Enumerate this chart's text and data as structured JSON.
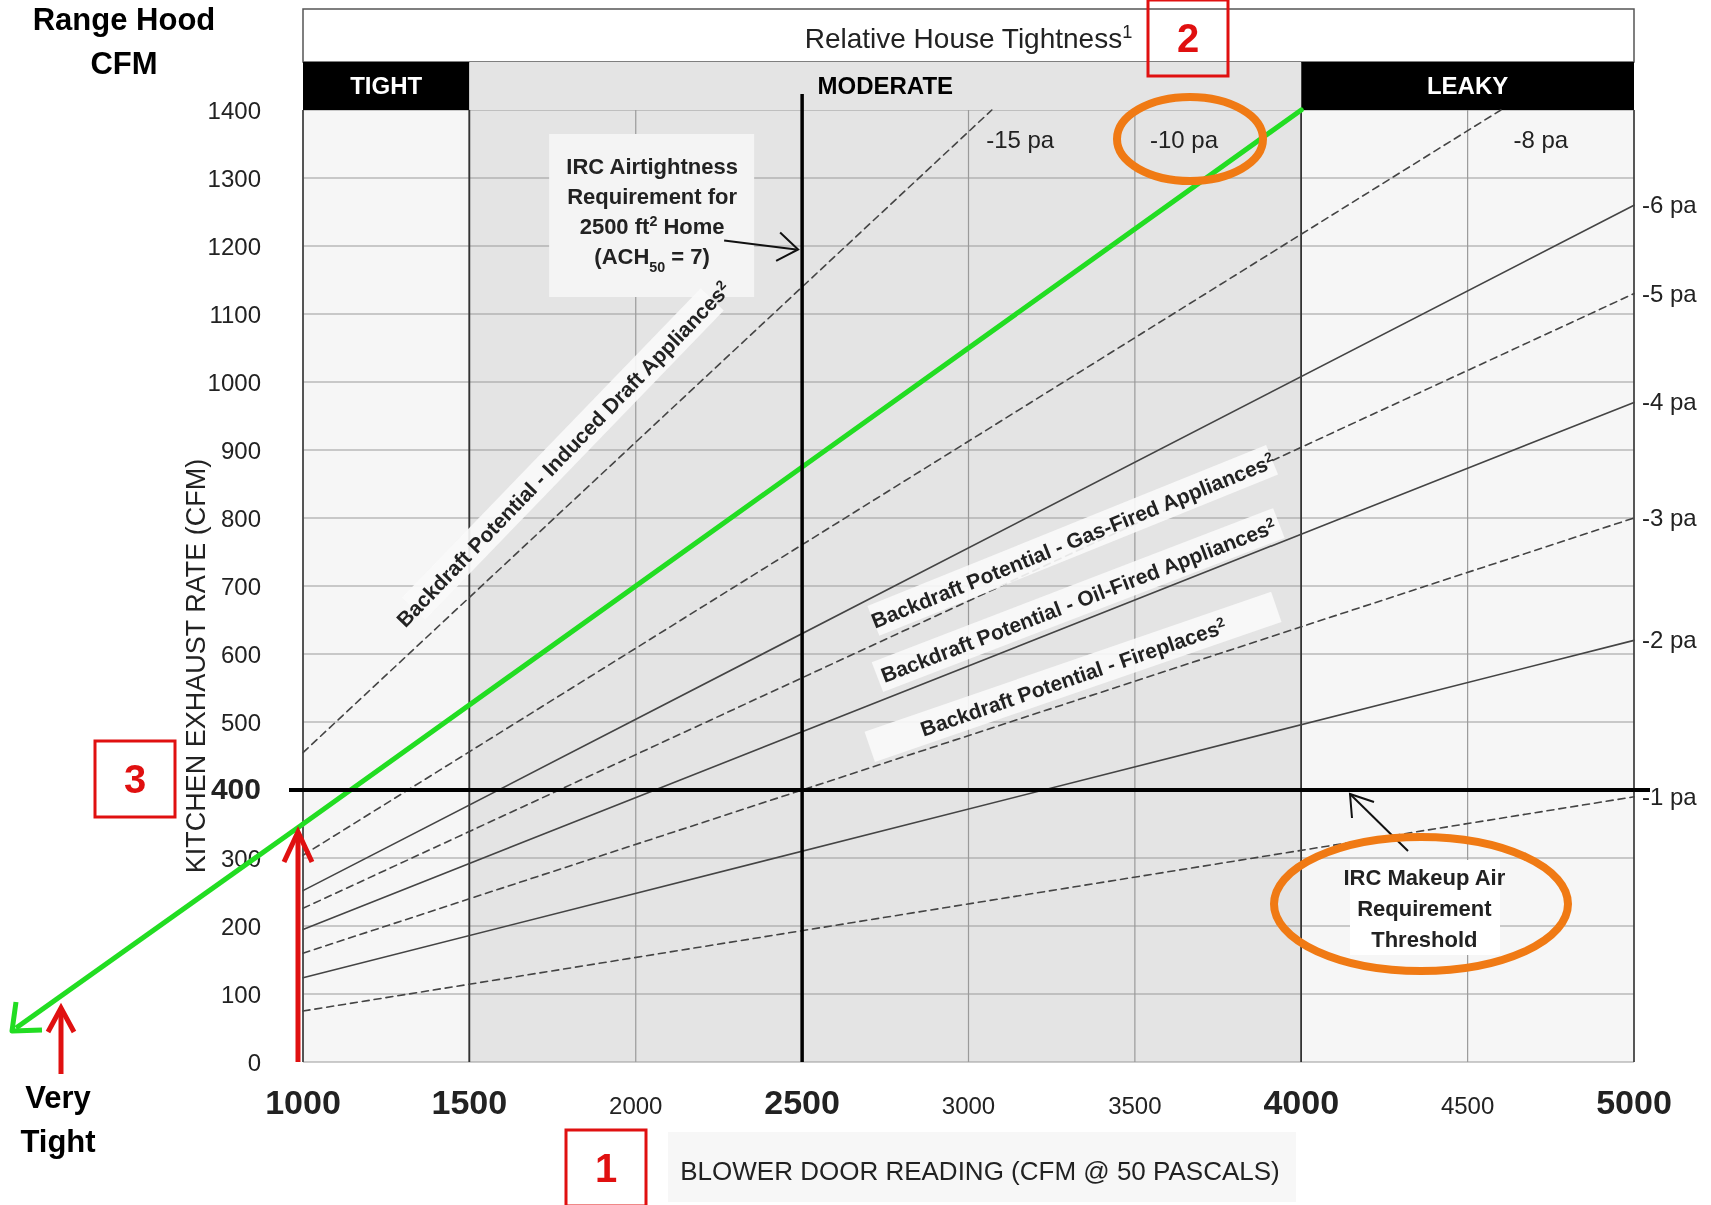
{
  "chart_data": {
    "type": "line",
    "title": "Relative House Tightness$^{1}$",
    "xlabel": "BLOWER DOOR READING (CFM @ 50 PASCALS)",
    "ylabel": "KITCHEN EXHAUST RATE (CFM)",
    "xlim": [
      1000,
      5000
    ],
    "ylim": [
      0,
      1400
    ],
    "xticks": [
      1000,
      1500,
      2000,
      2500,
      3000,
      3500,
      4000,
      4500,
      5000
    ],
    "yticks": [
      0,
      100,
      200,
      300,
      400,
      500,
      600,
      700,
      800,
      900,
      1000,
      1100,
      1200,
      1300,
      1400
    ],
    "grid": true,
    "marker": "none",
    "series": [
      {
        "name": "-1 pa",
        "color": "#444444",
        "line_style": "dashed",
        "x": [
          1000,
          5000
        ],
        "values": [
          75,
          390
        ]
      },
      {
        "name": "-2 pa",
        "color": "#444444",
        "line_style": "solid",
        "x": [
          1000,
          5000
        ],
        "values": [
          124,
          620
        ]
      },
      {
        "name": "-3 pa",
        "color": "#444444",
        "line_style": "dashed",
        "x": [
          1000,
          5000
        ],
        "values": [
          160,
          800
        ]
      },
      {
        "name": "-4 pa",
        "color": "#444444",
        "line_style": "solid",
        "x": [
          1000,
          5000
        ],
        "values": [
          195,
          970
        ]
      },
      {
        "name": "-5 pa",
        "color": "#444444",
        "line_style": "dashed",
        "x": [
          1000,
          5000
        ],
        "values": [
          226,
          1130
        ]
      },
      {
        "name": "-6 pa",
        "color": "#444444",
        "line_style": "solid",
        "x": [
          1000,
          5000
        ],
        "values": [
          252,
          1260
        ]
      },
      {
        "name": "-8 pa",
        "color": "#444444",
        "line_style": "dashed",
        "x": [
          1000,
          4600
        ],
        "values": [
          304,
          1400
        ]
      },
      {
        "name": "-10 pa",
        "color": "#22dd22",
        "line_style": "solid",
        "x": [
          1000,
          4000
        ],
        "values": [
          350,
          1400
        ]
      },
      {
        "name": "-15 pa",
        "color": "#444444",
        "line_style": "dashed",
        "x": [
          1000,
          3070
        ],
        "values": [
          455,
          1400
        ]
      }
    ],
    "bands": [
      {
        "axis": "x",
        "from": 1000,
        "to": 1500,
        "label": "TIGHT",
        "color": "#f6f6f6"
      },
      {
        "axis": "x",
        "from": 1500,
        "to": 4000,
        "label": "MODERATE",
        "color": "#e4e4e4"
      },
      {
        "axis": "x",
        "from": 4000,
        "to": 5000,
        "label": "LEAKY",
        "color": "#f6f6f6"
      }
    ],
    "ref_lines": [
      {
        "axis": "x",
        "value": 2500,
        "label": "IRC Airtightness\nRequirement for\n2500 ft$^{2}$ Home\n(ACH$_{50}$ = 7)",
        "color": "#000000"
      },
      {
        "axis": "y",
        "value": 400,
        "label": "IRC Makeup Air\nRequirement\nThreshold",
        "color": "#000000"
      }
    ],
    "annotations": [
      "Backdraft Potential - Induced Draft Appliances$^{2}$",
      "Backdraft Potential - Gas-Fired Appliances$^{2}$",
      "Backdraft Potential - Oil-Fired Appliances$^{2}$",
      "Backdraft Potential - Fireplaces$^{2}$",
      "Range Hood\nCFM",
      "Very\nTight",
      "1",
      "2",
      "3"
    ]
  }
}
